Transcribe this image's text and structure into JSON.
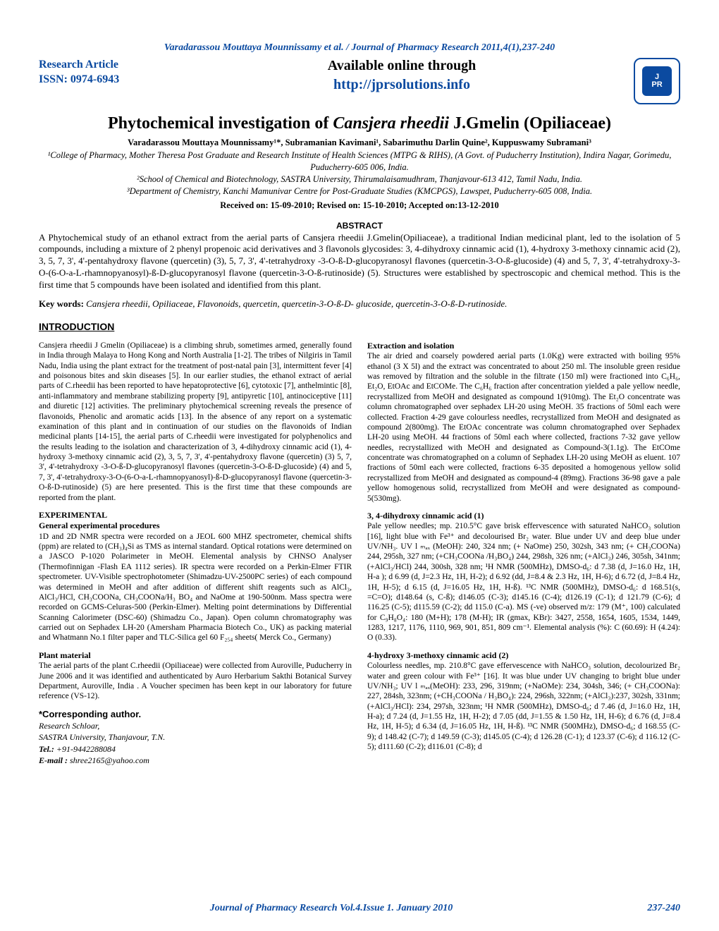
{
  "colors": {
    "accent": "#0b4aa0",
    "text": "#000000",
    "background": "#ffffff"
  },
  "header_author_line": "Varadarassou Mouttaya Mounnissamy et al. / Journal of Pharmacy Research 2011,4(1),237-240",
  "research_article": "Research  Article",
  "issn": "ISSN: 0974-6943",
  "available_online": "Available online through",
  "site_url": "http://jprsolutions.info",
  "logo": {
    "top": "J",
    "bottom": "PR"
  },
  "title_plain_prefix": "Phytochemical investigation of ",
  "title_italic": "Cansjera rheedii",
  "title_plain_suffix": " J.Gmelin (Opiliaceae)",
  "authors": "Varadarassou Mouttaya Mounnissamy¹*, Subramanian Kavimani¹, Sabarimuthu Darlin Quine², Kuppuswamy Subramani³",
  "affil1": "¹College of Pharmacy, Mother Theresa Post Graduate and Research Institute of Health Sciences (MTPG & RIHS), (A Govt. of Puducherry Institution), Indira Nagar, Gorimedu, Puducherry-605 006, India.",
  "affil2": "²School of Chemical and Biotechnology, SASTRA University, Thirumalaisamudhram, Thanjavour-613 412, Tamil Nadu, India.",
  "affil3": "³Department of Chemistry, Kanchi Mamunivar Centre for Post-Graduate Studies (KMCPGS), Lawspet, Puducherry-605 008, India.",
  "dates": "Received on: 15-09-2010; Revised  on: 15-10-2010; Accepted on:13-12-2010",
  "abstract_head": "ABSTRACT",
  "abstract_body": "A Phytochemical study of an ethanol extract from the aerial parts of Cansjera rheedii J.Gmelin(Opiliaceae), a traditional Indian medicinal plant, led to the isolation of 5 compounds, including a mixture of 2 phenyl propenoic acid derivatives and 3 flavonols glycosides: 3, 4-dihydroxy cinnamic acid (1), 4-hydroxy 3-methoxy cinnamic acid (2), 3, 5, 7, 3', 4'-pentahydroxy flavone (quercetin) (3), 5, 7, 3', 4'-tetrahydroxy -3-O-ß-D-glucopyranosyl flavones (quercetin-3-O-ß-glucoside) (4) and 5, 7, 3', 4'-tetrahydroxy-3-O-(6-O-a-L-rhamnopyanosyl)-ß-D-glucopyranosyl flavone (quercetin-3-O-ß-rutinoside) (5). Structures were established by spectroscopic and chemical method. This is the first time that 5 compounds have been isolated and identified from this plant.",
  "keywords_label": "Key words:",
  "keywords_body": " Cansjera rheedii, Opiliaceae, Flavonoids, quercetin, quercetin-3-O-ß-D- glucoside, quercetin-3-O-ß-D-rutinoside.",
  "intro_head": "INTRODUCTION",
  "col_intro": "Cansjera rheedii J Gmelin (Opiliaceae) is a climbing shrub, sometimes armed, generally found in India through Malaya to Hong Kong and North Australia [1-2]. The tribes of Nilgiris in Tamil Nadu, India using the plant extract for the treatment of post-natal pain [3], intermittent fever [4] and poisonous bites and skin diseases [5].  In our earlier studies, the ethanol extract of aerial parts of C.rheedii has been reported to have hepatoprotective [6], cytotoxic [7], anthelmintic [8], anti-inflammatory and membrane stabilizing property [9], antipyretic [10], antinociceptive [11] and diuretic [12] activities.   The preliminary phytochemical screening reveals the presence of flavonoids, Phenolic and aromatic acids [13]. In the absence of any report on a systematic examination of this plant and in continuation of our studies on the flavonoids of Indian medicinal plants [14-15], the aerial parts of C.rheedii were investigated for polyphenolics and the results leading to the isolation and characterization of 3, 4-dihydroxy cinnamic acid (1), 4-hydroxy 3-methoxy cinnamic acid (2), 3, 5, 7, 3', 4'-pentahydroxy flavone (quercetin) (3) 5, 7, 3', 4'-tetrahydroxy -3-O-ß-D-glucopyranosyl flavones (quercetin-3-O-ß-D-glucoside) (4) and 5, 7, 3', 4'-tetrahydroxy-3-O-(6-O-a-L-rhamnopyanosyl)-ß-D-glucopyranosyl flavone (quercetin-3-O-ß-D-rutinoside) (5) are here presented. This is the first time that these compounds are reported from the plant.",
  "exp_head": "EXPERIMENTAL",
  "gen_head": "General experimental procedures",
  "gen_body": "1D and 2D NMR spectra were recorded on a JEOL 600 MHZ spectrometer, chemical shifts (ppm) are related to (CH₃)₄Si as TMS as internal standard.  Optical rotations were determined on a JASCO P-1020 Polarimeter in MeOH.  Elemental analysis by CHNSO Analyser (Thermofinnigan -Flash EA 1112 series).  IR spectra were recorded on a Perkin-Elmer FTIR spectrometer.   UV-Visible spectrophotometer (Shimadzu-UV-2500PC series) of each compound was determined in MeOH and after addition of different shift reagents such as AlCl₃, AlCl₃/HCl, CH₃COONa, CH₃COONa/H₃ BO₄ and NaOme at 190-500nm.  Mass spectra were recorded on GCMS-Celuras-500 (Perkin-Elmer). Melting point determinations by Differential Scanning Calorimeter (DSC-60) (Shimadzu Co., Japan).  Open column chromatography was carried out on Sephadex LH-20 (Amersham Pharmacia Biotech Co., UK) as packing material and Whatmann No.1 filter paper and TLC-Silica gel 60 F₂₅₄  sheets( Merck Co., Germany)",
  "plant_head": "Plant material",
  "plant_body": "The aerial parts of the plant C.rheedii (Opiliaceae) were collected from Auroville, Puducherry in June 2006 and it was identified and authenticated by Auro Herbarium Sakthi Botanical Survey Department, Auroville, India .  A Voucher specimen has been kept in our laboratory for future reference (VS-12).",
  "corr_head": "*Corresponding author.",
  "corr_l1": "Research Schloar,",
  "corr_l2": " SASTRA University, Thanjavour, T.N.",
  "corr_tel_label": "Tel.:",
  "corr_tel": " +91-9442288084",
  "corr_email_label": "E-mail :",
  "corr_email": " shree2165@yahoo.com",
  "ext_head": "Extraction and isolation",
  "ext_body": "The air dried and coarsely powdered aerial parts (1.0Kg) were extracted with boiling 95% ethanol (3 X 5l) and the extract was concentrated to about 250 ml. The insoluble green residue was removed by filtration and the soluble in the filtrate (150 ml) were fractioned into C₆H₆, Et₂O, EtOAc and EtCOMe.  The C₆H₆ fraction after concentration yielded a pale yellow needle, recrystallized from MeOH and designated as compound 1(910mg). The Et₂O concentrate was column chromatographed over sephadex LH-20 using MeOH.  35 fractions of 50ml each were collected. Fraction 4-29 gave colourless needles, recrystallized from MeOH and designated as compound 2(800mg). The EtOAc concentrate was column chromatographed over Sephadex LH-20 using MeOH. 44 fractions of 50ml each where collected, fractions 7-32 gave yellow needles, recrystallized with MeOH and designated as Compound-3(1.1g). The EtCOme concentrate was chromatographed on a column of Sephadex LH-20 using MeOH as eluent.  107 fractions of 50ml each were collected, fractions 6-35 deposited a homogenous yellow solid recrystallized from MeOH and designated as compound-4 (89mg). Fractions 36-98 gave a pale yellow homogenous solid,  recrystallized from MeOH and were designated as compound-5(530mg).",
  "c1_head": "3, 4-dihydroxy cinnamic acid (1)",
  "c1_body": "Pale yellow needles; mp. 210.5°C gave brisk effervescence with saturated NaHCO₃ solution [16], light blue with Fe³⁺ and decolourised Br₂ water. Blue under UV and deep blue under UV/NH₃. UV l ₘₐₓ (MeOH): 240, 324 nm; (+ NaOme) 250, 302sh, 343 nm; (+ CH₃COONa) 244, 295sh, 327 nm; (+CH₃COONa /H₃BO₄) 244, 298sh, 326 nm; (+AlCl₃) 246, 305sh, 341nm; (+AlCl₃/HCl) 244, 300sh, 328 nm; ¹H NMR (500MHz), DMSO-d₆: d 7.38 (d, J=16.0 Hz, 1H, H-a ); d 6.99 (d, J=2.3 Hz, 1H, H-2); d 6.92 (dd, J=8.4 & 2.3 Hz, 1H, H-6); d 6.72 (d, J=8.4 Hz, 1H, H-5); d 6.15 (d, J=16.05 Hz, 1H, H-ß). ¹³C NMR (500MHz), DMSO-d₆: d 168.51(s, =C=O); d148.64 (s, C-ß); d146.05 (C-3); d145.16 (C-4); d126.19 (C-1); d 121.79 (C-6); d 116.25 (C-5); d115.59 (C-2); dd 115.0 (C-a). MS (-ve) observed m/z: 179 (M⁺, 100) calculated for C₉H₈O₄: 180 (M+H); 178 (M-H); IR (gmax, KBr): 3427, 2558, 1654, 1605, 1534, 1449, 1283, 1217, 1176, 1110, 969, 901, 851, 809 cm⁻¹.  Elemental analysis (%): C (60.69): H (4.24): O (0.33).",
  "c2_head": " 4-hydroxy 3-methoxy cinnamic acid (2)",
  "c2_body": "Colourless needles, mp. 210.8°C gave effervescence with NaHCO₃ solution, decolourized Br₂ water and green colour with Fe³⁺ [16]. It was blue under UV changing to bright blue under UV/NH₃; UV l ₘₐₓ(MeOH): 233, 296, 319nm; (+NaOMe): 234, 304sh, 346; (+ CH₃COONa): 227, 284sh, 323nm; (+CH₃COONa / H₃BO₄): 224, 296sh, 322nm; (+AlCl₃):237, 302sh, 331nm; (+AlCl₃/HCl): 234, 297sh, 323nm;  ¹H NMR (500MHz), DMSO-d₆; d 7.46 (d, J=16.0 Hz, 1H, H-a); d 7.24 (d, J=1.55 Hz, 1H, H-2); d 7.05 (dd, J=1.55 & 1.50 Hz, 1H, H-6); d 6.76 (d, J=8.4 Hz, 1H, H-5); d 6.34 (d, J=16.05 Hz, 1H, H-ß). ¹³C NMR (500MHz), DMSO-d₆; d 168.55 (C-9); d 148.42 (C-7); d 149.59 (C-3); d145.05 (C-4); d 126.28 (C-1); d 123.37 (C-6); d 116.12 (C-5); d111.60 (C-2); d116.01 (C-8); d",
  "footer_center": "Journal of Pharmacy Research Vol.4.Issue 1. January 2010",
  "footer_right": "237-240"
}
